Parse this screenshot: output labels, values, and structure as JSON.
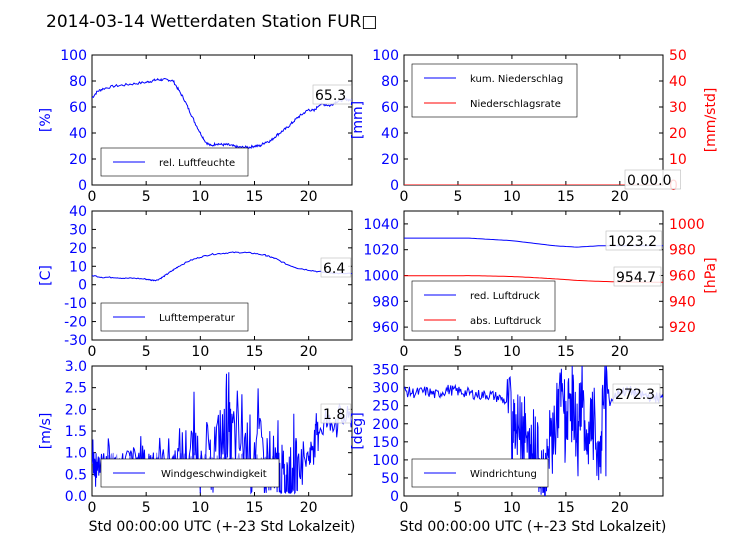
{
  "title": "2014-03-14 Wetterdaten Station FUR□",
  "colors": {
    "blue": "#0000ff",
    "red": "#ff0000",
    "lightblue": "#8080ff",
    "black": "#000000"
  },
  "chart_data": [
    {
      "id": "humidity",
      "type": "line",
      "ylabel": "[%]",
      "ylim": [
        0,
        100
      ],
      "yticks": [
        0,
        20,
        40,
        60,
        80,
        100
      ],
      "xlim": [
        0,
        24
      ],
      "xticks": [
        0,
        5,
        10,
        15,
        20
      ],
      "legend": "lower-left",
      "series": [
        {
          "name": "rel. Luftfeuchte",
          "color": "blue",
          "x": [
            0,
            0.5,
            1,
            2,
            3,
            4,
            5,
            5.5,
            6,
            6.5,
            7,
            7.5,
            8,
            8.5,
            9,
            9.5,
            10,
            10.5,
            11,
            11.5,
            12,
            12.5,
            13,
            13.5,
            14,
            14.5,
            15,
            15.5,
            16,
            16.5,
            17,
            17.5,
            18,
            18.5,
            19,
            19.5,
            20,
            20.5,
            21,
            21.5,
            22,
            22.5,
            23,
            23.5,
            24
          ],
          "y": [
            67,
            72,
            74,
            76,
            77,
            78,
            79,
            80,
            81,
            81,
            81,
            80,
            73,
            66,
            57,
            48,
            40,
            33,
            30,
            32,
            31,
            31,
            30,
            29,
            29,
            29,
            30,
            30,
            33,
            34,
            38,
            41,
            44,
            48,
            52,
            55,
            58,
            57,
            62,
            62,
            61,
            64,
            65,
            66,
            65
          ]
        }
      ],
      "annotation": "65.3"
    },
    {
      "id": "rain",
      "type": "line",
      "ylabel": "[mm]",
      "ylim": [
        0,
        100
      ],
      "yticks": [
        0,
        20,
        40,
        60,
        80,
        100
      ],
      "ylabel_right": "[mm/std]",
      "ylim_right": [
        0,
        50
      ],
      "yticks_right": [
        0,
        10,
        20,
        30,
        40,
        50
      ],
      "xlim": [
        0,
        24
      ],
      "xticks": [
        0,
        5,
        10,
        15,
        20
      ],
      "legend": "top-left",
      "series": [
        {
          "name": "kum. Niederschlag",
          "color": "blue",
          "x": [
            0,
            24
          ],
          "y": [
            0,
            0
          ]
        },
        {
          "name": "Niederschlagsrate",
          "color": "red",
          "axis": "right",
          "x": [
            0,
            24
          ],
          "y": [
            0,
            0
          ]
        }
      ],
      "annotation": "0.00.0"
    },
    {
      "id": "temperature",
      "type": "line",
      "ylabel": "[C]",
      "ylim": [
        -30,
        40
      ],
      "yticks": [
        -30,
        -20,
        -10,
        0,
        10,
        20,
        30,
        40
      ],
      "xlim": [
        0,
        24
      ],
      "xticks": [
        0,
        5,
        10,
        15,
        20
      ],
      "legend": "lower-left",
      "series": [
        {
          "name": "Lufttemperatur",
          "color": "blue",
          "x": [
            0,
            1,
            2,
            3,
            4,
            5,
            5.5,
            6,
            6.5,
            7,
            7.5,
            8,
            9,
            10,
            11,
            12,
            13,
            14,
            15,
            16,
            16.5,
            17,
            18,
            19,
            20,
            21,
            22,
            23,
            24
          ],
          "y": [
            5,
            4,
            4,
            3.5,
            3.5,
            3,
            2.5,
            2.5,
            4,
            6,
            8,
            10,
            13,
            15,
            16.5,
            17,
            17.5,
            17.5,
            17,
            16,
            15,
            14,
            11,
            9,
            8,
            7,
            6.5,
            6,
            6
          ]
        }
      ],
      "annotation": "6.4"
    },
    {
      "id": "pressure",
      "type": "line",
      "ylabel_right": "[hPa]",
      "ylim": [
        950,
        1050
      ],
      "yticks": [
        960,
        980,
        1000,
        1020,
        1040
      ],
      "ylim_right": [
        910,
        1010
      ],
      "yticks_right": [
        920,
        940,
        960,
        980,
        1000
      ],
      "xlim": [
        0,
        24
      ],
      "xticks": [
        0,
        5,
        10,
        15,
        20
      ],
      "legend": "lower-left",
      "series": [
        {
          "name": "red. Luftdruck",
          "color": "blue",
          "x": [
            0,
            2,
            4,
            6,
            8,
            10,
            12,
            14,
            16,
            18,
            20,
            22,
            24
          ],
          "y": [
            1029,
            1029,
            1029,
            1029,
            1028,
            1027,
            1025,
            1023,
            1022,
            1023,
            1023,
            1023,
            1023
          ]
        },
        {
          "name": "abs. Luftdruck",
          "color": "red",
          "axis": "right",
          "x": [
            0,
            2,
            4,
            6,
            8,
            10,
            12,
            14,
            16,
            18,
            20,
            22,
            24
          ],
          "y": [
            959.8,
            959.8,
            959.8,
            959.9,
            959.6,
            959.2,
            958.4,
            957.4,
            956.2,
            955.5,
            955.0,
            954.8,
            954.7
          ]
        }
      ],
      "annotations": [
        "1023.2",
        "954.7"
      ]
    },
    {
      "id": "wind",
      "type": "line",
      "ylabel": "[m/s]",
      "ylim": [
        0,
        3.0
      ],
      "yticks": [
        0.0,
        0.5,
        1.0,
        1.5,
        2.0,
        2.5,
        3.0
      ],
      "xlim": [
        0,
        24
      ],
      "xticks": [
        0,
        5,
        10,
        15,
        20
      ],
      "legend": "lower-center",
      "series": [
        {
          "name": "Windgeschwindigkeit",
          "color": "blue",
          "noise_envelope": "lightblue",
          "x": [
            0,
            0.5,
            1,
            2,
            3,
            4,
            5,
            6,
            7,
            8,
            9,
            10,
            11,
            12,
            12.5,
            13,
            14,
            15,
            16,
            17,
            17.5,
            18,
            18.5,
            19,
            20,
            20.5,
            21,
            22,
            23,
            24
          ],
          "y": [
            0.8,
            0.6,
            0.9,
            0.7,
            0.8,
            0.9,
            0.8,
            0.9,
            0.8,
            0.9,
            1.0,
            1.0,
            1.2,
            1.3,
            1.6,
            1.3,
            1.2,
            1.2,
            1.0,
            0.7,
            0.5,
            0.3,
            0.5,
            0.7,
            0.9,
            1.3,
            1.6,
            1.7,
            1.8,
            1.8
          ]
        }
      ],
      "annotation": "1.8"
    },
    {
      "id": "direction",
      "type": "line",
      "ylabel": "[deg]",
      "ylim": [
        0,
        360
      ],
      "yticks": [
        0,
        50,
        100,
        150,
        200,
        250,
        300,
        350
      ],
      "xlim": [
        0,
        24
      ],
      "xticks": [
        0,
        5,
        10,
        15,
        20
      ],
      "legend": "lower-left",
      "series": [
        {
          "name": "Windrichtung",
          "color": "blue",
          "x": [
            0,
            1,
            2,
            3,
            4,
            5,
            6,
            7,
            8,
            9,
            10,
            10.5,
            11,
            11.5,
            12,
            12.5,
            13,
            13.5,
            14,
            14.5,
            15,
            15.5,
            16,
            16.5,
            17,
            17.5,
            18,
            18.5,
            19,
            20,
            21,
            22,
            23,
            24
          ],
          "y": [
            290,
            285,
            290,
            280,
            295,
            290,
            285,
            280,
            280,
            270,
            250,
            190,
            230,
            120,
            160,
            100,
            60,
            150,
            200,
            280,
            230,
            300,
            170,
            290,
            90,
            260,
            60,
            310,
            260,
            290,
            290,
            280,
            275,
            272
          ]
        }
      ],
      "annotation": "272.3"
    }
  ],
  "xlabel": "Std 00:00:00 UTC (+-23 Std Lokalzeit)"
}
